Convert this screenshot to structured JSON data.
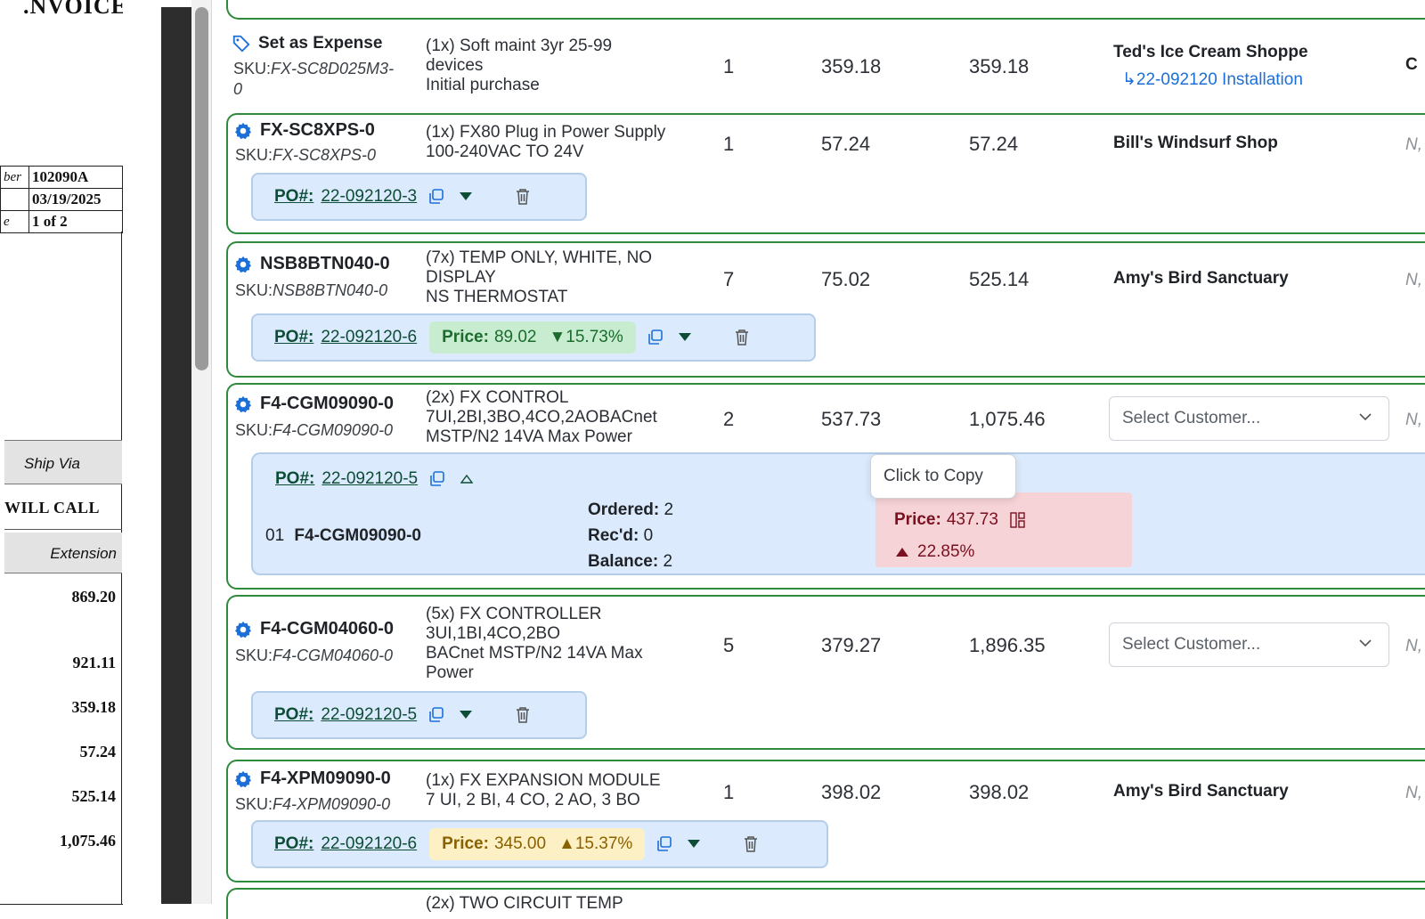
{
  "invoice_doc": {
    "title": ".NVOICE",
    "meta": [
      {
        "label": "ber",
        "value": "102090A"
      },
      {
        "label": "",
        "value": "03/19/2025"
      },
      {
        "label": "e",
        "value": "1 of 2"
      }
    ],
    "ship_via_label": "Ship Via",
    "ship_via_value": "WILL CALL",
    "extension_label": "Extension",
    "amounts": [
      "869.20",
      "921.11",
      "359.18",
      "57.24",
      "525.14",
      "1,075.46"
    ]
  },
  "items": [
    {
      "title": "Set as Expense",
      "sku_prefix": "SKU:",
      "sku_line1": "FX-SC8D025M3-",
      "sku_line2": "0",
      "desc": [
        "(1x) Soft maint 3yr 25-99",
        "devices",
        "Initial purchase"
      ],
      "qty": "1",
      "price": "359.18",
      "ext": "359.18",
      "customer": "Ted's Ice Cream Shoppe",
      "link": "↳22-092120 Installation",
      "edge": "C"
    },
    {
      "part": "FX-SC8XPS-0",
      "sku_prefix": "SKU:",
      "sku": "FX-SC8XPS-0",
      "desc": [
        "(1x) FX80 Plug in Power Supply",
        "100-240VAC TO 24V"
      ],
      "qty": "1",
      "price": "57.24",
      "ext": "57.24",
      "customer": "Bill's Windsurf Shop",
      "edge": "N,",
      "po_label": "PO#:",
      "po": "22-092120-3"
    },
    {
      "part": "NSB8BTN040-0",
      "sku_prefix": "SKU:",
      "sku": "NSB8BTN040-0",
      "desc": [
        "(7x) TEMP ONLY, WHITE, NO",
        "DISPLAY",
        "NS THERMOSTAT"
      ],
      "qty": "7",
      "price": "75.02",
      "ext": "525.14",
      "customer": "Amy's Bird Sanctuary",
      "edge": "N,",
      "po_label": "PO#:",
      "po": "22-092120-6",
      "price_label": "Price:",
      "price_val": "89.02",
      "price_delta": "▼15.73%"
    },
    {
      "part": "F4-CGM09090-0",
      "sku_prefix": "SKU:",
      "sku": "F4-CGM09090-0",
      "desc": [
        "(2x) FX CONTROL",
        "7UI,2BI,3BO,4CO,2AOBACnet",
        "MSTP/N2 14VA Max Power"
      ],
      "qty": "2",
      "price": "537.73",
      "ext": "1,075.46",
      "select_placeholder": "Select Customer...",
      "edge": "N,",
      "po_label": "PO#:",
      "po": "22-092120-5",
      "line_no": "01",
      "line_part": "F4-CGM09090-0",
      "ordered_label": "Ordered:",
      "ordered": "2",
      "recd_label": "Rec'd:",
      "recd": "0",
      "balance_label": "Balance:",
      "balance": "2",
      "price_label": "Price:",
      "price_val": "437.73",
      "price_delta": "22.85%",
      "tooltip": "Click to Copy"
    },
    {
      "part": "F4-CGM04060-0",
      "sku_prefix": "SKU:",
      "sku": "F4-CGM04060-0",
      "desc": [
        "(5x) FX CONTROLLER",
        "3UI,1BI,4CO,2BO",
        "BACnet MSTP/N2 14VA Max",
        "Power"
      ],
      "qty": "5",
      "price": "379.27",
      "ext": "1,896.35",
      "select_placeholder": "Select Customer...",
      "edge": "N,",
      "po_label": "PO#:",
      "po": "22-092120-5"
    },
    {
      "part": "F4-XPM09090-0",
      "sku_prefix": "SKU:",
      "sku": "F4-XPM09090-0",
      "desc": [
        "(1x) FX EXPANSION MODULE",
        "7 UI, 2 BI, 4 CO, 2 AO, 3 BO"
      ],
      "qty": "1",
      "price": "398.02",
      "ext": "398.02",
      "customer": "Amy's Bird Sanctuary",
      "edge": "N,",
      "po_label": "PO#:",
      "po": "22-092120-6",
      "price_label": "Price:",
      "price_val": "345.00",
      "price_delta": "▲15.37%"
    },
    {
      "desc": [
        "(2x) TWO CIRCUIT TEMP"
      ]
    }
  ],
  "colors": {
    "card_border": "#2f8a3c",
    "po_bg": "#dbeafc",
    "link": "#1d6fd8",
    "gear": "#1d6fd8",
    "price_up_bg": "#c8ecd0",
    "price_warn_bg": "#fdf0c4",
    "price_bad_bg": "#f6d3d7"
  }
}
